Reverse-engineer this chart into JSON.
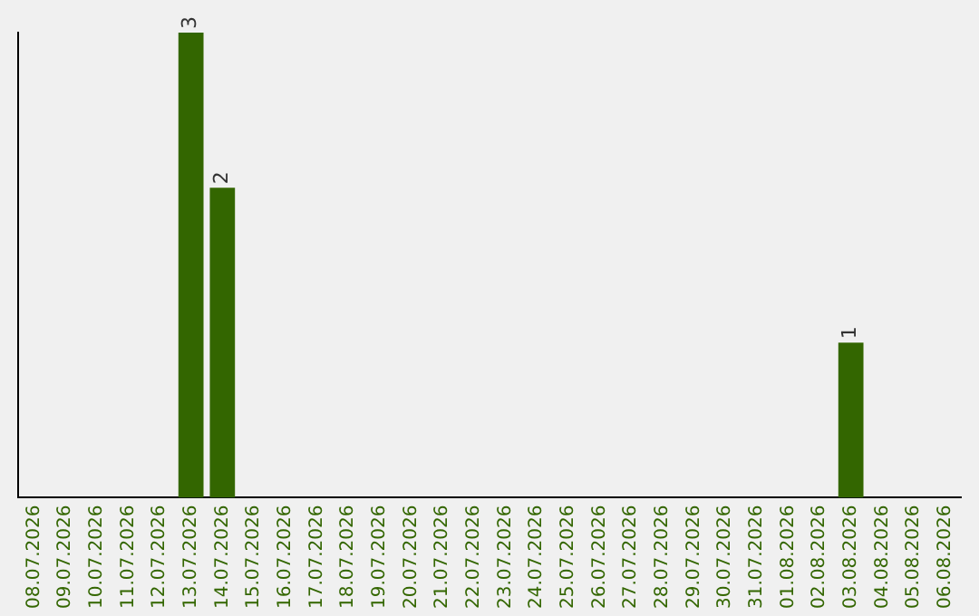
{
  "chart_data": {
    "type": "bar",
    "categories": [
      "08.07.2026",
      "09.07.2026",
      "10.07.2026",
      "11.07.2026",
      "12.07.2026",
      "13.07.2026",
      "14.07.2026",
      "15.07.2026",
      "16.07.2026",
      "17.07.2026",
      "18.07.2026",
      "19.07.2026",
      "20.07.2026",
      "21.07.2026",
      "22.07.2026",
      "23.07.2026",
      "24.07.2026",
      "25.07.2026",
      "26.07.2026",
      "27.07.2026",
      "28.07.2026",
      "29.07.2026",
      "30.07.2026",
      "31.07.2026",
      "01.08.2026",
      "02.08.2026",
      "03.08.2026",
      "04.08.2026",
      "05.08.2026",
      "06.08.2026"
    ],
    "values": [
      0,
      0,
      0,
      0,
      0,
      3,
      2,
      0,
      0,
      0,
      0,
      0,
      0,
      0,
      0,
      0,
      0,
      0,
      0,
      0,
      0,
      0,
      0,
      0,
      0,
      0,
      1,
      0,
      0,
      0
    ],
    "value_labels": [
      null,
      null,
      null,
      null,
      null,
      "3",
      "2",
      null,
      null,
      null,
      null,
      null,
      null,
      null,
      null,
      null,
      null,
      null,
      null,
      null,
      null,
      null,
      null,
      null,
      null,
      null,
      "1",
      null,
      null,
      null
    ],
    "color": "#336600",
    "grid": false,
    "legend": false
  }
}
